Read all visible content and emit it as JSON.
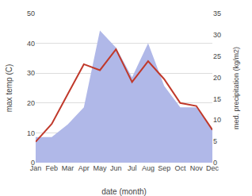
{
  "chart_data": {
    "type": "line",
    "categories": [
      "Jan",
      "Feb",
      "Mar",
      "Apr",
      "May",
      "Jun",
      "Jul",
      "Aug",
      "Sep",
      "Oct",
      "Nov",
      "Dec"
    ],
    "series": [
      {
        "type": "area",
        "color": "#b0b8e8",
        "axis": "y2",
        "values": [
          6,
          6,
          9,
          13,
          31,
          27,
          20,
          28,
          18,
          13,
          13,
          8
        ]
      },
      {
        "type": "line",
        "color": "#c0392b",
        "values": [
          7,
          13,
          23,
          33,
          31,
          38,
          27,
          34,
          28,
          20,
          19,
          11
        ]
      }
    ],
    "xlabel": "date (month)",
    "ylabel": "max temp (C)",
    "y2label": "med. precipitation (kg/m2)",
    "ylim": [
      0,
      50
    ],
    "yticks": [
      0,
      10,
      20,
      30,
      40,
      50
    ],
    "y2lim": [
      0,
      35
    ],
    "y2ticks": [
      0,
      5,
      10,
      15,
      20,
      25,
      30,
      35
    ],
    "grid": true
  }
}
